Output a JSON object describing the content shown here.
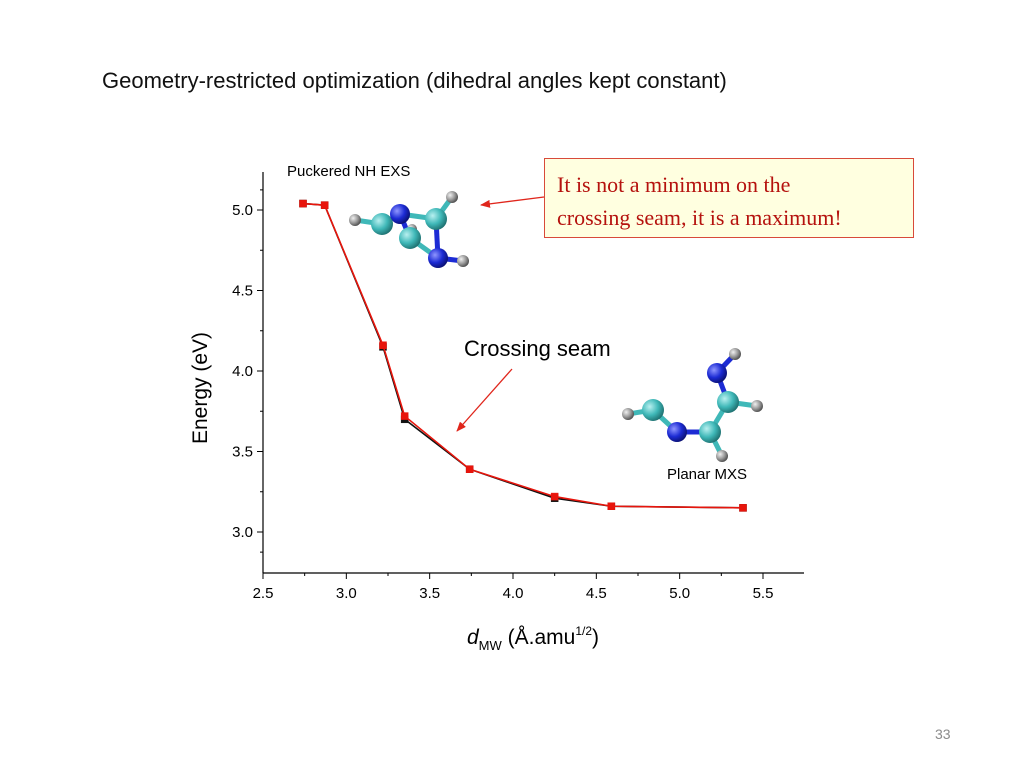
{
  "slide": {
    "title": "Geometry-restricted optimization (dihedral angles kept constant)",
    "page_number": "33"
  },
  "callout": {
    "line1": "It is not a minimum on the",
    "line2": "crossing seam, it is a maximum!"
  },
  "annotations": {
    "crossing_seam": "Crossing seam",
    "puckered_label": "Puckered NH EXS",
    "planar_label": "Planar MXS"
  },
  "colors": {
    "series_red": "#e8150c",
    "series_black": "#111111",
    "arrow": "#e0261c",
    "callout_text": "#b5120e",
    "atom_carbon": "#3fb8b8",
    "atom_nitrogen": "#1c2bd4",
    "atom_hydrogen": "#8c8c8c"
  },
  "chart_data": {
    "type": "line",
    "title": "",
    "xlabel_main": "d",
    "xlabel_sub": "MW",
    "xlabel_unit": " (Å.amu",
    "xlabel_sup": "1/2",
    "xlabel_close": ")",
    "ylabel": "Energy (eV)",
    "xlim": [
      2.5,
      5.6
    ],
    "ylim": [
      2.82,
      5.25
    ],
    "x_ticks": [
      2.5,
      3.0,
      3.5,
      4.0,
      4.5,
      5.0,
      5.5
    ],
    "x_tick_labels": [
      "2.5",
      "3.0",
      "3.5",
      "4.0",
      "4.5",
      "5.0",
      "5.5"
    ],
    "y_ticks": [
      3.0,
      3.5,
      4.0,
      4.5,
      5.0
    ],
    "y_tick_labels": [
      "3.0",
      "3.5",
      "4.0",
      "4.5",
      "5.0"
    ],
    "series": [
      {
        "name": "black",
        "color": "#111111",
        "x": [
          2.74,
          2.87,
          3.22,
          3.35,
          3.74,
          4.25,
          4.59,
          5.38
        ],
        "y": [
          5.04,
          5.03,
          4.15,
          3.7,
          3.39,
          3.21,
          3.16,
          3.15
        ]
      },
      {
        "name": "red",
        "color": "#e8150c",
        "x": [
          2.74,
          2.87,
          3.22,
          3.35,
          3.74,
          4.25,
          4.59,
          5.38
        ],
        "y": [
          5.04,
          5.03,
          4.16,
          3.72,
          3.39,
          3.22,
          3.16,
          3.15
        ]
      }
    ]
  }
}
